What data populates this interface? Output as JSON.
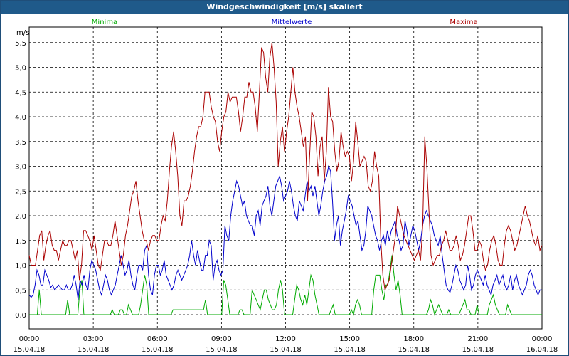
{
  "chart_data": {
    "type": "line",
    "title": "Windgeschwindigkeit [m/s] skaliert",
    "ylabel": "m/s",
    "ylim": [
      0,
      5.75
    ],
    "y_ticks": [
      "0,0",
      "0,5",
      "1,0",
      "1,5",
      "2,0",
      "2,5",
      "3,0",
      "3,5",
      "4,0",
      "4,5",
      "5,0",
      "5,5"
    ],
    "x_ticks": [
      {
        "time": "00:00",
        "date": "15.04.18"
      },
      {
        "time": "03:00",
        "date": "15.04.18"
      },
      {
        "time": "06:00",
        "date": "15.04.18"
      },
      {
        "time": "09:00",
        "date": "15.04.18"
      },
      {
        "time": "12:00",
        "date": "15.04.18"
      },
      {
        "time": "15:00",
        "date": "15.04.18"
      },
      {
        "time": "18:00",
        "date": "15.04.18"
      },
      {
        "time": "21:00",
        "date": "15.04.18"
      },
      {
        "time": "00:00",
        "date": "16.04.18"
      }
    ],
    "grid": true,
    "legend_position": "top",
    "series": [
      {
        "name": "Minima",
        "color": "#00aa00",
        "values": [
          0,
          0,
          0,
          0,
          0,
          0.5,
          0,
          0,
          0,
          0,
          0,
          0,
          0,
          0,
          0,
          0,
          0,
          0,
          0,
          0.3,
          0,
          0,
          0,
          0,
          0,
          0.5,
          0.7,
          0,
          0,
          0,
          0,
          0,
          0,
          0,
          0,
          0,
          0,
          0,
          0,
          0,
          0,
          0.1,
          0,
          0,
          0,
          0.1,
          0.1,
          0,
          0,
          0.2,
          0.1,
          0,
          0,
          0,
          0,
          0.2,
          0.5,
          0.8,
          0.6,
          0,
          0,
          0,
          0,
          0,
          0,
          0,
          0,
          0,
          0,
          0,
          0,
          0.1,
          0.1,
          0.1,
          0.1,
          0.1,
          0.1,
          0.1,
          0.1,
          0.1,
          0.1,
          0.1,
          0.1,
          0.1,
          0.1,
          0.1,
          0.1,
          0.3,
          0,
          0,
          0,
          0,
          0,
          0,
          0,
          0,
          0.7,
          0.6,
          0.3,
          0,
          0,
          0,
          0,
          0,
          0.1,
          0.1,
          0,
          0,
          0,
          0,
          0.5,
          0.4,
          0.3,
          0.2,
          0.1,
          0.3,
          0.5,
          0.5,
          0.3,
          0.2,
          0.1,
          0.1,
          0.2,
          0.5,
          0.7,
          0.5,
          0,
          0,
          0,
          0,
          0,
          0.3,
          0.6,
          0.5,
          0.3,
          0.2,
          0.4,
          0.2,
          0.5,
          0.8,
          0.7,
          0.4,
          0.2,
          0,
          0,
          0,
          0,
          0,
          0,
          0.1,
          0.2,
          0,
          0,
          0,
          0,
          0,
          0,
          0,
          0,
          0.1,
          0,
          0.2,
          0.3,
          0.2,
          0,
          0,
          0,
          0,
          0,
          0,
          0.5,
          0.8,
          0.8,
          0.8,
          0.5,
          0.3,
          0.6,
          0.6,
          0.9,
          1.2,
          0.8,
          0.5,
          0.7,
          0.4,
          0,
          0,
          0,
          0,
          0,
          0,
          0,
          0,
          0,
          0,
          0,
          0,
          0,
          0.1,
          0.3,
          0.2,
          0,
          0.1,
          0.2,
          0.1,
          0,
          0,
          0,
          0.1,
          0,
          0,
          0,
          0,
          0,
          0.1,
          0.2,
          0.3,
          0.1,
          0.1,
          0,
          0,
          0,
          0.2,
          0,
          0,
          0,
          0,
          0,
          0.2,
          0.3,
          0.4,
          0.2,
          0.1,
          0,
          0,
          0,
          0,
          0.2,
          0.1,
          0,
          0,
          0,
          0,
          0,
          0,
          0,
          0,
          0,
          0,
          0,
          0,
          0,
          0,
          0,
          0
        ]
      },
      {
        "name": "Mittelwerte",
        "color": "#0000cc",
        "values": [
          0.4,
          0.35,
          0.4,
          0.6,
          0.9,
          0.8,
          0.6,
          0.6,
          0.9,
          0.8,
          0.7,
          0.55,
          0.6,
          0.5,
          0.55,
          0.6,
          0.55,
          0.5,
          0.5,
          0.6,
          0.5,
          0.5,
          0.6,
          0.8,
          0.6,
          0.3,
          0.7,
          0.6,
          0.8,
          0.6,
          0.5,
          0.9,
          1.1,
          1.0,
          0.9,
          0.7,
          0.5,
          0.4,
          0.6,
          0.8,
          0.7,
          0.5,
          0.4,
          0.5,
          0.6,
          0.8,
          1.0,
          1.2,
          1.0,
          0.8,
          0.9,
          1.1,
          0.8,
          0.6,
          0.5,
          0.8,
          1.0,
          1.0,
          0.9,
          1.3,
          1.4,
          0.8,
          0.5,
          0.4,
          0.8,
          1.0,
          1.0,
          0.8,
          0.9,
          1.1,
          0.8,
          0.7,
          0.6,
          0.5,
          0.6,
          0.8,
          0.9,
          0.8,
          0.7,
          0.8,
          0.9,
          1.0,
          1.2,
          1.5,
          1.2,
          1.0,
          1.3,
          1.1,
          0.9,
          0.9,
          1.2,
          1.2,
          1.5,
          1.4,
          0.7,
          1.0,
          1.1,
          0.9,
          0.8,
          0.9,
          1.8,
          1.6,
          1.5,
          2.0,
          2.3,
          2.5,
          2.7,
          2.6,
          2.4,
          2.2,
          2.3,
          2.0,
          1.9,
          1.8,
          1.8,
          1.6,
          2.0,
          2.1,
          1.8,
          2.2,
          2.3,
          2.4,
          2.6,
          2.2,
          2.0,
          2.3,
          2.6,
          2.7,
          2.8,
          2.6,
          2.3,
          2.4,
          2.5,
          2.7,
          2.5,
          2.2,
          2.0,
          1.9,
          2.3,
          2.2,
          2.1,
          2.4,
          2.7,
          2.5,
          2.6,
          2.4,
          2.6,
          2.3,
          2.0,
          2.2,
          2.5,
          2.7,
          2.8,
          3.0,
          2.9,
          2.3,
          1.5,
          1.8,
          2.0,
          1.4,
          1.7,
          1.9,
          2.1,
          2.4,
          2.3,
          2.2,
          2.0,
          1.8,
          1.9,
          1.6,
          1.3,
          1.4,
          1.7,
          2.2,
          2.1,
          2.0,
          1.8,
          1.6,
          1.5,
          1.3,
          1.5,
          1.6,
          1.4,
          1.7,
          1.5,
          1.7,
          1.8,
          1.9,
          1.6,
          1.5,
          1.3,
          1.4,
          1.9,
          1.7,
          1.4,
          1.6,
          1.8,
          1.7,
          1.5,
          1.3,
          1.5,
          1.8,
          2.0,
          2.1,
          2.0,
          1.9,
          1.8,
          1.6,
          1.5,
          1.4,
          1.6,
          1.2,
          0.9,
          0.6,
          0.5,
          0.45,
          0.6,
          0.8,
          1.0,
          0.9,
          0.7,
          0.6,
          0.5,
          0.6,
          1.0,
          0.8,
          0.5,
          0.6,
          0.8,
          0.9,
          0.8,
          0.7,
          0.6,
          0.8,
          0.6,
          0.5,
          0.4,
          0.6,
          0.7,
          0.8,
          0.6,
          0.7,
          0.8,
          0.6,
          0.5,
          0.6,
          0.8,
          0.5,
          0.7,
          0.8,
          0.6,
          0.5,
          0.4,
          0.5,
          0.6,
          0.8,
          0.9,
          0.8,
          0.6,
          0.5,
          0.4,
          0.5,
          0.5
        ]
      },
      {
        "name": "Maxima",
        "color": "#aa0000",
        "values": [
          1.2,
          1.0,
          1.0,
          1.0,
          1.3,
          1.6,
          1.7,
          1.1,
          1.4,
          1.6,
          1.7,
          1.4,
          1.3,
          1.3,
          1.1,
          1.3,
          1.5,
          1.4,
          1.4,
          1.5,
          1.5,
          1.3,
          1.1,
          1.3,
          0.7,
          1.0,
          1.7,
          1.7,
          1.6,
          1.5,
          1.3,
          1.6,
          1.3,
          1.0,
          0.9,
          1.2,
          1.5,
          1.5,
          1.4,
          1.4,
          1.6,
          1.9,
          1.6,
          1.3,
          1.0,
          1.2,
          1.6,
          1.8,
          2.1,
          2.4,
          2.5,
          2.7,
          2.3,
          2.0,
          1.7,
          1.5,
          1.5,
          1.3,
          1.5,
          1.6,
          1.6,
          1.5,
          1.5,
          1.8,
          2.0,
          1.9,
          2.3,
          2.9,
          3.4,
          3.7,
          3.3,
          2.8,
          2.0,
          1.8,
          2.3,
          2.3,
          2.4,
          2.6,
          2.9,
          3.3,
          3.6,
          3.8,
          3.8,
          4.0,
          4.5,
          4.5,
          4.5,
          4.2,
          4.0,
          3.9,
          3.5,
          3.3,
          3.7,
          4.0,
          4.1,
          4.5,
          4.3,
          4.4,
          4.4,
          4.4,
          4.1,
          3.7,
          4.0,
          4.4,
          4.4,
          4.7,
          4.5,
          4.5,
          4.2,
          3.7,
          4.5,
          5.4,
          5.3,
          4.8,
          4.5,
          5.2,
          5.5,
          5.0,
          4.3,
          3.0,
          3.5,
          3.8,
          3.3,
          3.7,
          4.0,
          4.5,
          5.0,
          4.5,
          4.2,
          4.0,
          3.7,
          3.4,
          3.6,
          2.3,
          3.2,
          4.1,
          4.0,
          3.6,
          2.8,
          3.4,
          3.6,
          2.7,
          3.3,
          4.6,
          4.0,
          3.9,
          3.3,
          2.9,
          3.1,
          3.7,
          3.4,
          3.2,
          3.3,
          3.2,
          2.7,
          3.1,
          3.9,
          3.5,
          3.0,
          3.1,
          3.2,
          3.1,
          2.6,
          2.5,
          2.7,
          3.3,
          3.0,
          2.8,
          1.5,
          0.8,
          0.5,
          0.6,
          0.7,
          1.0,
          1.3,
          1.6,
          2.2,
          2.0,
          1.8,
          1.6,
          1.5,
          1.4,
          1.3,
          1.2,
          1.1,
          1.2,
          1.3,
          1.1,
          1.8,
          3.6,
          3.0,
          2.1,
          1.2,
          1.0,
          1.1,
          1.2,
          1.2,
          1.4,
          1.5,
          1.7,
          1.5,
          1.3,
          1.3,
          1.4,
          1.6,
          1.4,
          1.1,
          1.2,
          1.4,
          1.7,
          2.0,
          2.0,
          1.7,
          1.3,
          1.3,
          1.5,
          1.4,
          1.1,
          0.9,
          1.0,
          1.3,
          1.5,
          1.6,
          1.4,
          1.1,
          1.0,
          1.0,
          1.4,
          1.7,
          1.8,
          1.7,
          1.5,
          1.3,
          1.4,
          1.6,
          1.8,
          2.0,
          2.2,
          2.0,
          1.9,
          1.7,
          1.5,
          1.4,
          1.6,
          1.3,
          1.4
        ]
      }
    ]
  }
}
